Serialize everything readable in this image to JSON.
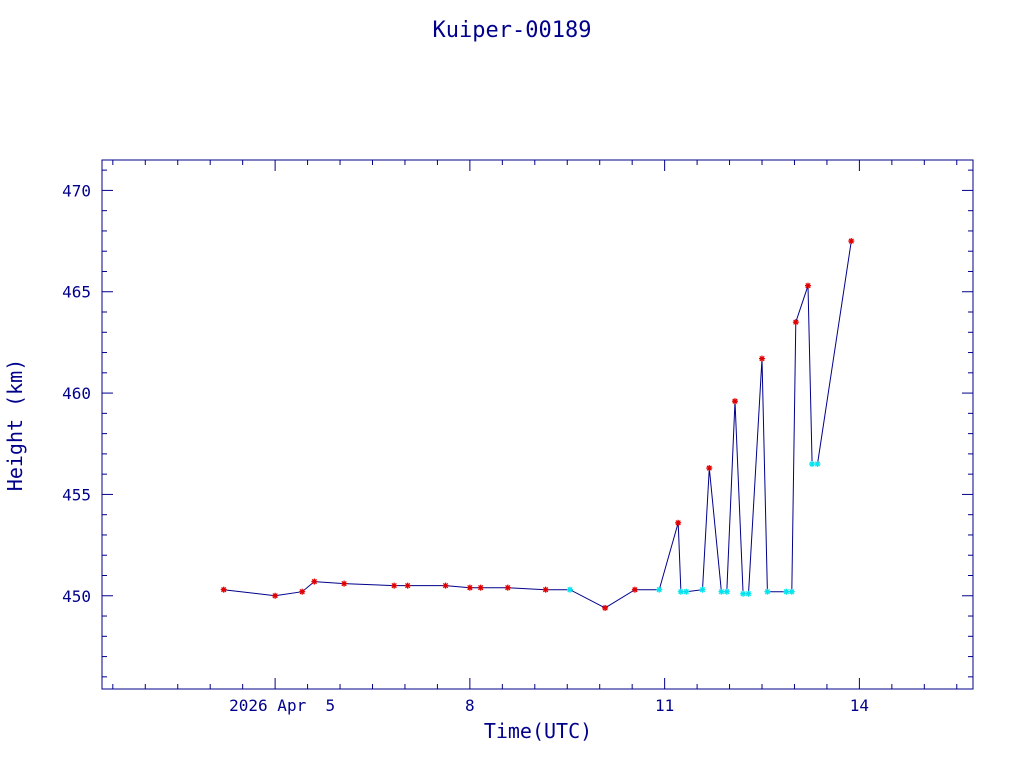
{
  "chart_data": {
    "type": "scatter",
    "title": "Kuiper-00189",
    "xlabel": "Time(UTC)",
    "ylabel": "Height (km)",
    "xlim": [
      "2026-04-02T08:00",
      "2026-04-15T18:00"
    ],
    "ylim": [
      445.4,
      471.5
    ],
    "x_ticks": [
      {
        "x": "2026-04-05T00:00",
        "label": "2026 Apr  5"
      },
      {
        "x": "2026-04-08T00:00",
        "label": "8"
      },
      {
        "x": "2026-04-11T00:00",
        "label": "11"
      },
      {
        "x": "2026-04-14T00:00",
        "label": "14"
      }
    ],
    "y_ticks": [
      450,
      455,
      460,
      465,
      470
    ],
    "grid": false,
    "colors": {
      "axes": "#00008b",
      "line": "#00008b",
      "series_red": "#e00000",
      "series_cyan": "#00e5ee"
    },
    "series": [
      {
        "color": "#e00000",
        "marker": "star",
        "points": [
          {
            "x": "2026-04-04T05:00",
            "y": 450.3
          },
          {
            "x": "2026-04-05T00:00",
            "y": 450.0
          },
          {
            "x": "2026-04-05T10:00",
            "y": 450.2
          },
          {
            "x": "2026-04-05T14:30",
            "y": 450.7
          },
          {
            "x": "2026-04-06T01:30",
            "y": 450.6
          },
          {
            "x": "2026-04-06T20:00",
            "y": 450.5
          },
          {
            "x": "2026-04-07T01:00",
            "y": 450.5
          },
          {
            "x": "2026-04-07T15:00",
            "y": 450.5
          },
          {
            "x": "2026-04-08T00:00",
            "y": 450.4
          },
          {
            "x": "2026-04-08T04:00",
            "y": 450.4
          },
          {
            "x": "2026-04-08T14:00",
            "y": 450.4
          },
          {
            "x": "2026-04-09T04:00",
            "y": 450.3
          },
          {
            "x": "2026-04-10T02:00",
            "y": 449.4
          },
          {
            "x": "2026-04-10T13:00",
            "y": 450.3
          },
          {
            "x": "2026-04-11T05:00",
            "y": 453.6
          },
          {
            "x": "2026-04-11T16:30",
            "y": 456.3
          },
          {
            "x": "2026-04-12T02:00",
            "y": 459.6
          },
          {
            "x": "2026-04-12T12:00",
            "y": 461.7
          },
          {
            "x": "2026-04-13T00:30",
            "y": 463.5
          },
          {
            "x": "2026-04-13T05:00",
            "y": 465.3
          },
          {
            "x": "2026-04-13T21:00",
            "y": 467.5
          }
        ]
      },
      {
        "color": "#00e5ee",
        "marker": "star",
        "points": [
          {
            "x": "2026-04-09T13:00",
            "y": 450.3
          },
          {
            "x": "2026-04-10T22:00",
            "y": 450.3
          },
          {
            "x": "2026-04-11T06:00",
            "y": 450.2
          },
          {
            "x": "2026-04-11T08:00",
            "y": 450.2
          },
          {
            "x": "2026-04-11T14:00",
            "y": 450.3
          },
          {
            "x": "2026-04-11T21:00",
            "y": 450.2
          },
          {
            "x": "2026-04-11T23:00",
            "y": 450.2
          },
          {
            "x": "2026-04-12T05:00",
            "y": 450.1
          },
          {
            "x": "2026-04-12T07:00",
            "y": 450.1
          },
          {
            "x": "2026-04-12T14:00",
            "y": 450.2
          },
          {
            "x": "2026-04-12T21:00",
            "y": 450.2
          },
          {
            "x": "2026-04-12T23:00",
            "y": 450.2
          },
          {
            "x": "2026-04-13T06:30",
            "y": 456.5
          },
          {
            "x": "2026-04-13T08:30",
            "y": 456.5
          }
        ]
      }
    ]
  }
}
